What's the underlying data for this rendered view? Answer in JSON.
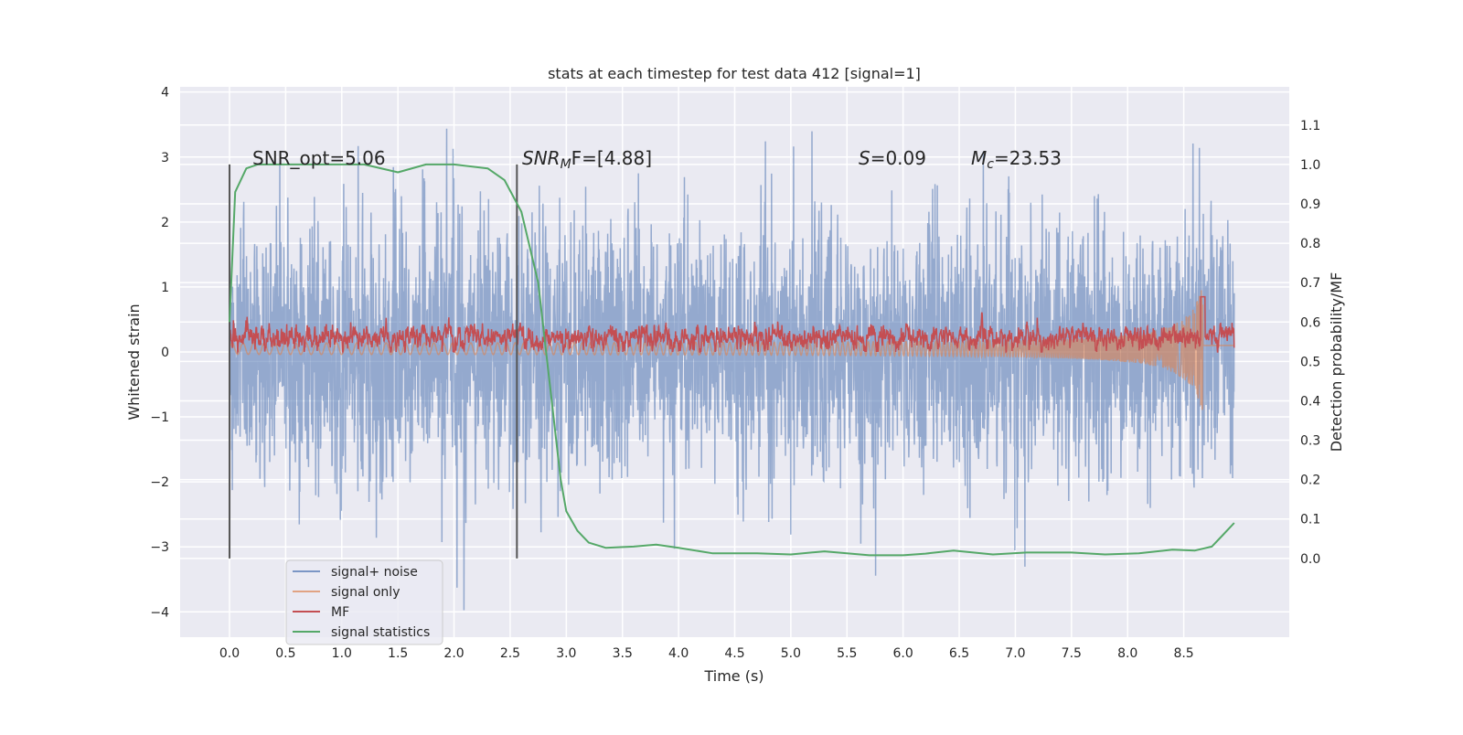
{
  "chart_data": {
    "type": "line",
    "title": "stats at each timestep for test data 412 [signal=1]",
    "xlabel": "Time (s)",
    "ylabel": "Whitened strain",
    "ylabel_right": "Detection probability/MF",
    "xlim": [
      -0.44,
      9.44
    ],
    "ylim": [
      -4.39,
      4.08
    ],
    "ylim_right": [
      -0.2,
      1.197
    ],
    "xticks": [
      "0.0",
      "0.5",
      "1.0",
      "1.5",
      "2.0",
      "2.5",
      "3.0",
      "3.5",
      "4.0",
      "4.5",
      "5.0",
      "5.5",
      "6.0",
      "6.5",
      "7.0",
      "7.5",
      "8.0",
      "8.5"
    ],
    "yticks": [
      "4",
      "3",
      "2",
      "1",
      "0",
      "−1",
      "−2",
      "−3",
      "−4"
    ],
    "yticks_right": [
      "0.0",
      "0.1",
      "0.2",
      "0.3",
      "0.4",
      "0.5",
      "0.6",
      "0.7",
      "0.8",
      "0.9",
      "1.0",
      "1.1"
    ],
    "grid": true,
    "legend_placement": "lower-left",
    "annotations": {
      "snr_opt": "SNR_opt=5.06",
      "snr_mf_main": "SNR",
      "snr_mf_sub": "M",
      "snr_mf_rest": "F=[4.88]",
      "s_var": "S",
      "s_rest": "=0.09",
      "mc_var": "M",
      "mc_sub": "c",
      "mc_rest": "=23.53"
    },
    "vertical_markers_s": [
      0.0,
      2.56
    ],
    "series": [
      {
        "name": "signal+ noise",
        "color": "#4c72b0",
        "axis": "left",
        "description_range": [
          -4.0,
          3.7
        ],
        "t_end": 8.95
      },
      {
        "name": "signal only",
        "color": "#dd8452",
        "axis": "left",
        "merger_time": 8.67,
        "peak": [
          -1.1,
          0.7
        ]
      },
      {
        "name": "MF",
        "color": "#c44e52",
        "axis": "left",
        "typical_range": [
          0.0,
          0.6
        ],
        "peak": 1.0
      },
      {
        "name": "signal statistics",
        "color": "#55a868",
        "axis": "right",
        "t": [
          0,
          0.05,
          0.15,
          0.25,
          1.2,
          1.5,
          1.75,
          2.0,
          2.3,
          2.45,
          2.6,
          2.75,
          2.85,
          2.95,
          3.0,
          3.1,
          3.2,
          3.35,
          3.6,
          3.8,
          4.0,
          4.3,
          4.7,
          5.0,
          5.3,
          5.7,
          6.0,
          6.2,
          6.45,
          6.8,
          7.1,
          7.5,
          7.8,
          8.1,
          8.4,
          8.6,
          8.75,
          8.85,
          8.95
        ],
        "values": [
          0.6,
          0.93,
          0.99,
          1.0,
          1.0,
          0.98,
          1.0,
          1.0,
          0.99,
          0.96,
          0.88,
          0.7,
          0.45,
          0.2,
          0.12,
          0.07,
          0.04,
          0.027,
          0.03,
          0.035,
          0.027,
          0.013,
          0.013,
          0.01,
          0.018,
          0.008,
          0.008,
          0.012,
          0.02,
          0.01,
          0.015,
          0.015,
          0.01,
          0.013,
          0.022,
          0.02,
          0.03,
          0.06,
          0.09
        ]
      }
    ]
  }
}
